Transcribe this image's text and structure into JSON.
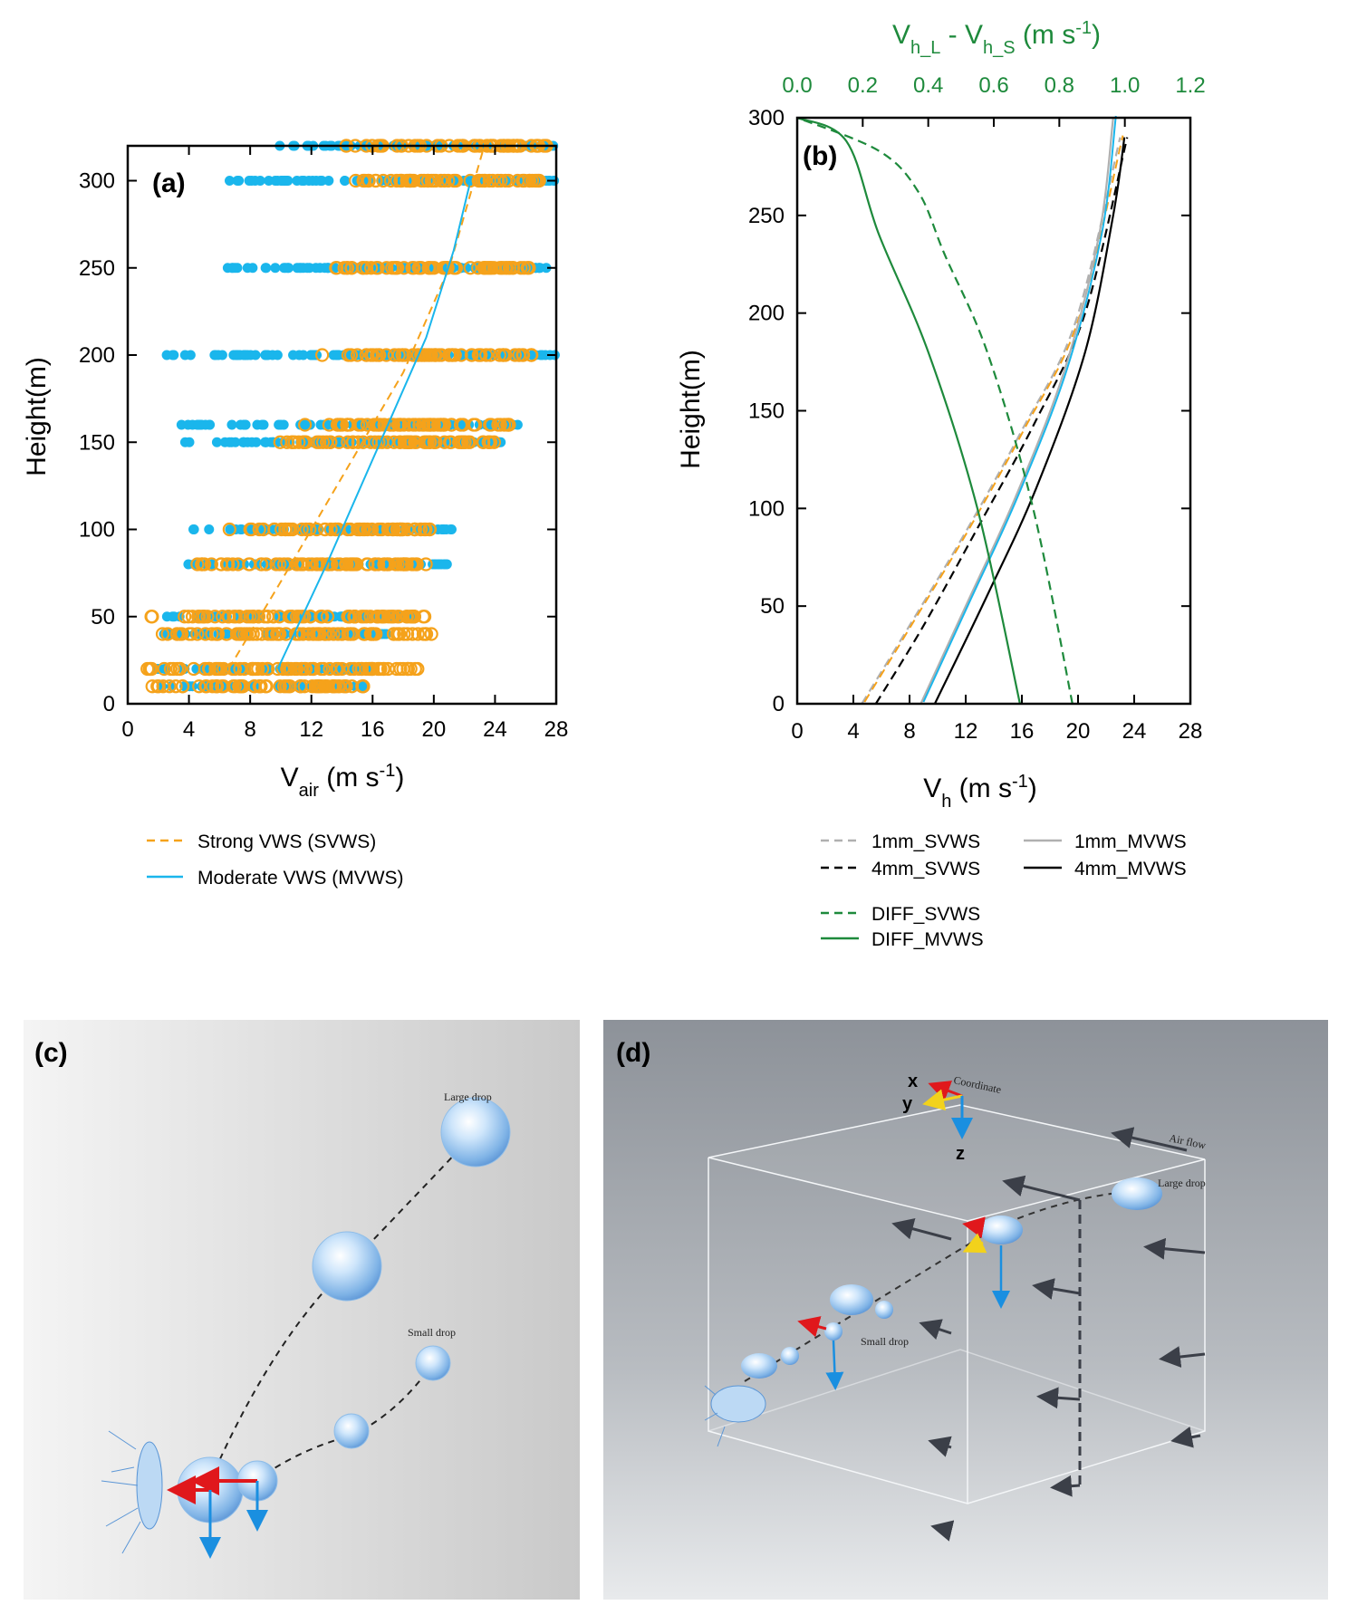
{
  "colors": {
    "orange": "#f5a21b",
    "cyan": "#1ab6ec",
    "green": "#1e8a3c",
    "black": "#000000",
    "gray": "#b0b0b0",
    "red": "#e0181c"
  },
  "chart_data": [
    {
      "id": "a",
      "type": "scatter",
      "panel_label": "(a)",
      "xlabel_main": "V",
      "xlabel_sub": "air",
      "xlabel_unit": " (m s",
      "xlabel_sup": "-1",
      "xlabel_end": ")",
      "ylabel": "Height(m)",
      "xlim": [
        0,
        28
      ],
      "ylim": [
        0,
        320
      ],
      "xticks": [
        0,
        4,
        8,
        12,
        16,
        20,
        24,
        28
      ],
      "yticks": [
        0,
        50,
        100,
        150,
        200,
        250,
        300
      ],
      "legend": {
        "placement": "bottom"
      },
      "series": [
        {
          "name": "Strong VWS (SVWS)",
          "kind": "scatter-open",
          "color": "#f5a21b",
          "rows": [
            {
              "y": 320,
              "ranges": [
                [
                  13.5,
                  27.5
                ]
              ]
            },
            {
              "y": 300,
              "ranges": [
                [
                  14.5,
                  27.0
                ]
              ]
            },
            {
              "y": 250,
              "ranges": [
                [
                  13.5,
                  26.5
                ]
              ]
            },
            {
              "y": 200,
              "ranges": [
                [
                  12.5,
                  26.5
                ]
              ]
            },
            {
              "y": 160,
              "ranges": [
                [
                  10.5,
                  25.0
                ]
              ]
            },
            {
              "y": 150,
              "ranges": [
                [
                  9.5,
                  24.0
                ]
              ]
            },
            {
              "y": 100,
              "ranges": [
                [
                  6.5,
                  20.0
                ]
              ]
            },
            {
              "y": 80,
              "ranges": [
                [
                  3.5,
                  19.5
                ]
              ]
            },
            {
              "y": 50,
              "ranges": [
                [
                  1.5,
                  19.5
                ]
              ]
            },
            {
              "y": 40,
              "ranges": [
                [
                  1.5,
                  20.0
                ]
              ]
            },
            {
              "y": 20,
              "ranges": [
                [
                  1.0,
                  19.0
                ]
              ]
            },
            {
              "y": 10,
              "ranges": [
                [
                  1.5,
                  15.5
                ]
              ]
            }
          ]
        },
        {
          "name": "Moderate VWS (MVWS)",
          "kind": "scatter-filled",
          "color": "#1ab6ec",
          "rows": [
            {
              "y": 320,
              "ranges": [
                [
                  8.5,
                  28.0
                ]
              ]
            },
            {
              "y": 300,
              "ranges": [
                [
                  6.5,
                  28.0
                ]
              ]
            },
            {
              "y": 250,
              "ranges": [
                [
                  5.0,
                  27.5
                ]
              ]
            },
            {
              "y": 200,
              "ranges": [
                [
                  2.5,
                  28.0
                ]
              ]
            },
            {
              "y": 160,
              "ranges": [
                [
                  3.5,
                  25.5
                ]
              ]
            },
            {
              "y": 150,
              "ranges": [
                [
                  3.5,
                  24.5
                ]
              ]
            },
            {
              "y": 100,
              "ranges": [
                [
                  4.0,
                  21.5
                ]
              ]
            },
            {
              "y": 80,
              "ranges": [
                [
                  3.0,
                  21.0
                ]
              ]
            },
            {
              "y": 50,
              "ranges": [
                [
                  2.0,
                  19.0
                ]
              ]
            },
            {
              "y": 40,
              "ranges": [
                [
                  2.0,
                  17.0
                ]
              ]
            },
            {
              "y": 20,
              "ranges": [
                [
                  1.5,
                  16.0
                ]
              ]
            },
            {
              "y": 10,
              "ranges": [
                [
                  2.0,
                  15.5
                ]
              ]
            }
          ]
        }
      ],
      "fits": [
        {
          "name": "Strong VWS (SVWS)",
          "color": "#f5a21b",
          "dash": true,
          "x": [
            6.6,
            10,
            14,
            18,
            21.0,
            23.3
          ],
          "y": [
            20,
            70,
            130,
            190,
            250,
            320
          ]
        },
        {
          "name": "Moderate VWS (MVWS)",
          "color": "#1ab6ec",
          "dash": false,
          "x": [
            9.8,
            13,
            16.5,
            19.5,
            21.3,
            22.4
          ],
          "y": [
            20,
            80,
            150,
            210,
            260,
            300
          ]
        }
      ]
    },
    {
      "id": "b",
      "type": "line",
      "panel_label": "(b)",
      "xlabel_main": "V",
      "xlabel_sub": "h",
      "xlabel_unit": " (m s",
      "xlabel_sup": "-1",
      "xlabel_end": ")",
      "top_label_main": "V",
      "top_label_sub1": "h_L",
      "top_label_mid": " - V",
      "top_label_sub2": "h_S",
      "top_label_unit": " (m s",
      "top_label_sup": "-1",
      "top_label_end": ")",
      "ylabel": "Height(m)",
      "xlim": [
        0,
        28
      ],
      "xlim_top": [
        0,
        1.2
      ],
      "ylim": [
        0,
        300
      ],
      "xticks": [
        0,
        4,
        8,
        12,
        16,
        20,
        24,
        28
      ],
      "xticks_top": [
        "0.0",
        "0.2",
        "0.4",
        "0.6",
        "0.8",
        "1.0",
        "1.2"
      ],
      "yticks": [
        0,
        50,
        100,
        150,
        200,
        250,
        300
      ],
      "legend": {
        "placement": "bottom"
      },
      "series": [
        {
          "name": "1mm_SVWS",
          "color": "#b0b0b0",
          "overlay": "#f5a21b",
          "dash": true,
          "axis": "bottom",
          "x": [
            4.6,
            8,
            12,
            16,
            19.8,
            23.0
          ],
          "y": [
            0,
            40,
            88,
            140,
            195,
            290
          ]
        },
        {
          "name": "4mm_SVWS",
          "color": "#000000",
          "dash": true,
          "axis": "bottom",
          "x": [
            5.6,
            9,
            13,
            17,
            20.5,
            23.5
          ],
          "y": [
            0,
            40,
            92,
            145,
            200,
            290
          ]
        },
        {
          "name": "1mm_MVWS",
          "color": "#b0b0b0",
          "overlay": "#1ab6ec",
          "dash": false,
          "axis": "bottom",
          "x": [
            8.8,
            12,
            15.5,
            19,
            21.5,
            22.5
          ],
          "y": [
            0,
            50,
            105,
            170,
            240,
            300
          ]
        },
        {
          "name": "4mm_MVWS",
          "color": "#000000",
          "dash": false,
          "axis": "bottom",
          "x": [
            9.8,
            13.5,
            17,
            20.5,
            22.5,
            23.3
          ],
          "y": [
            0,
            55,
            110,
            180,
            250,
            290
          ]
        },
        {
          "name": "DIFF_SVWS",
          "color": "#1e8a3c",
          "dash": true,
          "axis": "top",
          "x": [
            0.84,
            0.72,
            0.58,
            0.45,
            0.37,
            0.25,
            0.0
          ],
          "y": [
            0,
            100,
            180,
            230,
            262,
            283,
            300
          ]
        },
        {
          "name": "DIFF_MVWS",
          "color": "#1e8a3c",
          "dash": false,
          "axis": "top",
          "x": [
            0.68,
            0.55,
            0.4,
            0.25,
            0.15,
            0.0
          ],
          "y": [
            0,
            100,
            180,
            240,
            288,
            300
          ]
        }
      ]
    }
  ],
  "panel_c": {
    "label": "(c)",
    "large_drop_label": "Large drop",
    "small_drop_label": "Small drop"
  },
  "panel_d": {
    "label": "(d)",
    "coordinate_label": "Coordinate",
    "air_flow_label": "Air flow",
    "large_drop_label": "Large drop",
    "small_drop_label": "Small drop",
    "axis_x": "x",
    "axis_y": "y",
    "axis_z": "z"
  }
}
